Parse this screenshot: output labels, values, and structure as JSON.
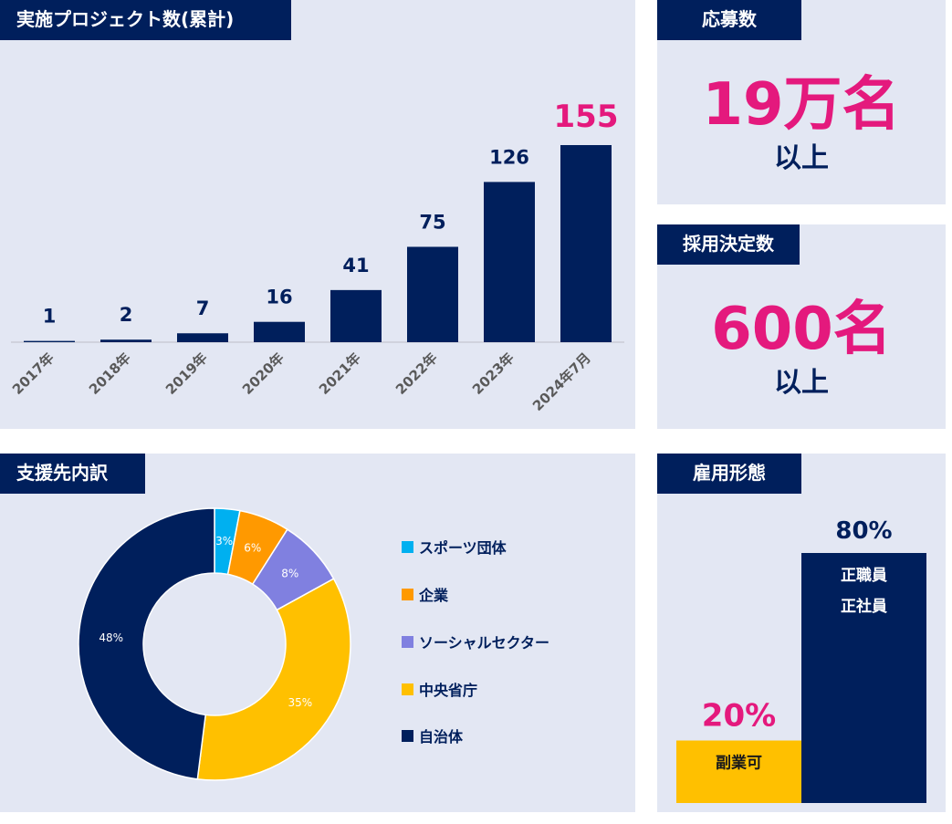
{
  "colors": {
    "navy": "#001f5c",
    "pink": "#e4197d",
    "panel": "#e3e7f3",
    "gold": "#ffc000"
  },
  "projects": {
    "title": "実施プロジェクト数(累計)",
    "chart_data": {
      "type": "bar",
      "title": "実施プロジェクト数(累計)",
      "categories": [
        "2017年",
        "2018年",
        "2019年",
        "2020年",
        "2021年",
        "2022年",
        "2023年",
        "2024年7月"
      ],
      "values": [
        1,
        2,
        7,
        16,
        41,
        75,
        126,
        155
      ],
      "value_labels": [
        "1",
        "2",
        "7",
        "16",
        "41",
        "75",
        "126",
        "155"
      ],
      "highlight_index": 7,
      "ylim": [
        0,
        155
      ]
    }
  },
  "applicants": {
    "title": "応募数",
    "value": "19万名",
    "sub": "以上"
  },
  "hires": {
    "title": "採用決定数",
    "value": "600名",
    "sub": "以上"
  },
  "support": {
    "title": "支援先内訳",
    "chart_data": {
      "type": "pie",
      "style": "donut",
      "title": "支援先内訳",
      "labels": [
        "スポーツ団体",
        "企業",
        "ソーシャルセクター",
        "中央省庁",
        "自治体"
      ],
      "values": [
        3,
        6,
        8,
        35,
        48
      ],
      "value_labels": [
        "3%",
        "6%",
        "8%",
        "35%",
        "48%"
      ],
      "colors": [
        "#00b0f0",
        "#ff9900",
        "#8080e0",
        "#ffc000",
        "#001f5c"
      ]
    }
  },
  "employment": {
    "title": "雇用形態",
    "chart_data": {
      "type": "bar",
      "title": "雇用形態",
      "categories": [
        "副業可",
        "正職員\n正社員"
      ],
      "values": [
        20,
        80
      ],
      "value_labels": [
        "20%",
        "80%"
      ],
      "category_lines": [
        [
          "副業可"
        ],
        [
          "正職員",
          "正社員"
        ]
      ],
      "colors": [
        "#ffc000",
        "#001f5c"
      ],
      "ylim": [
        0,
        80
      ]
    }
  }
}
